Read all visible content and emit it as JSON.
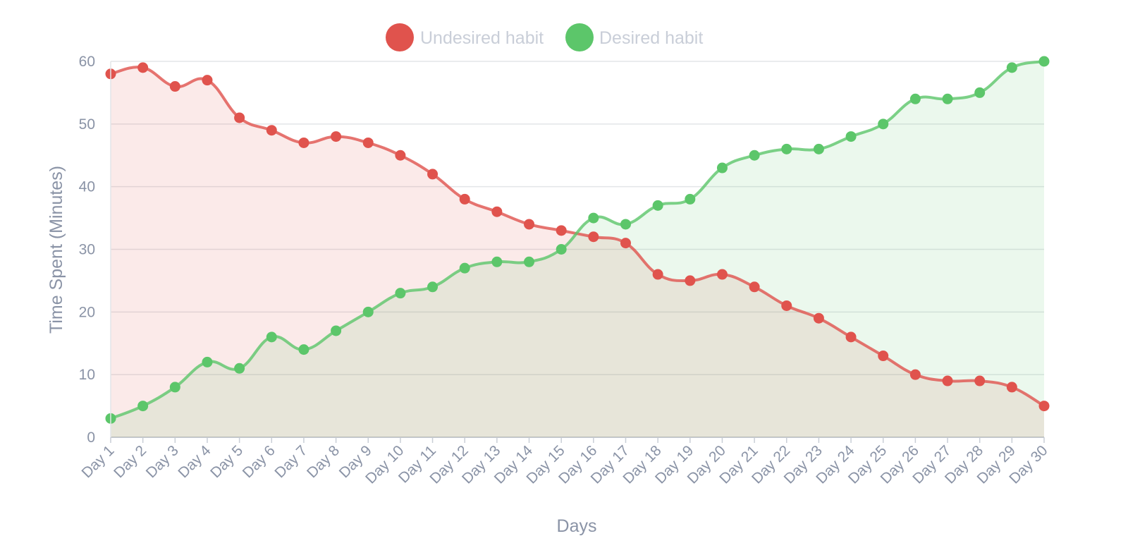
{
  "chart_data": {
    "type": "area",
    "title": "",
    "xlabel": "Days",
    "ylabel": "Time Spent (Minutes)",
    "ylim": [
      0,
      60
    ],
    "yticks": [
      0,
      10,
      20,
      30,
      40,
      50,
      60
    ],
    "grid": true,
    "legend_position": "top-center",
    "categories": [
      "Day 1",
      "Day 2",
      "Day 3",
      "Day 4",
      "Day 5",
      "Day 6",
      "Day 7",
      "Day 8",
      "Day 9",
      "Day 10",
      "Day 11",
      "Day 12",
      "Day 13",
      "Day 14",
      "Day 15",
      "Day 16",
      "Day 17",
      "Day 18",
      "Day 19",
      "Day 20",
      "Day 21",
      "Day 22",
      "Day 23",
      "Day 24",
      "Day 25",
      "Day 26",
      "Day 27",
      "Day 28",
      "Day 29",
      "Day 30"
    ],
    "series": [
      {
        "name": "Undesired habit",
        "color": "#e0534d",
        "fill": "#f8e1e3",
        "values": [
          58,
          59,
          56,
          57,
          51,
          49,
          47,
          48,
          47,
          45,
          42,
          38,
          36,
          34,
          33,
          32,
          31,
          26,
          25,
          26,
          24,
          21,
          19,
          16,
          13,
          10,
          9,
          9,
          8,
          5
        ]
      },
      {
        "name": "Desired habit",
        "color": "#5cc66a",
        "fill": "#e5f5e6",
        "values": [
          3,
          5,
          8,
          12,
          11,
          16,
          14,
          17,
          20,
          23,
          24,
          27,
          28,
          28,
          30,
          35,
          34,
          37,
          38,
          43,
          45,
          46,
          46,
          48,
          50,
          54,
          54,
          55,
          59,
          60
        ]
      }
    ]
  }
}
